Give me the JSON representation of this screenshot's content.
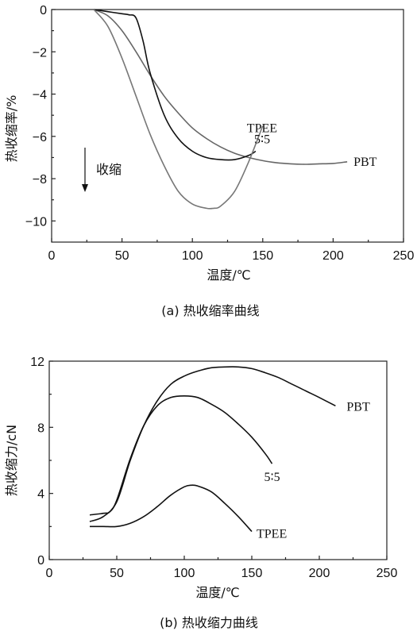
{
  "chart_data": [
    {
      "type": "line",
      "caption": "(a) 热收缩率曲线",
      "xlabel": "温度/℃",
      "ylabel": "热收缩率/%",
      "xlim": [
        0,
        250
      ],
      "ylim": [
        -11,
        0
      ],
      "xticks": [
        0,
        50,
        100,
        150,
        200,
        250
      ],
      "yticks": [
        0,
        -2,
        -4,
        -6,
        -8,
        -10
      ],
      "xtick_labels": [
        "0",
        "50",
        "100",
        "150",
        "200",
        "250"
      ],
      "ytick_labels": [
        "0",
        "−2",
        "−4",
        "−6",
        "−8",
        "−10"
      ],
      "annotation": "收缩",
      "grid": false,
      "series": [
        {
          "name": "PBT",
          "color": "#666666",
          "x": [
            30,
            40,
            50,
            60,
            70,
            80,
            90,
            100,
            110,
            120,
            130,
            140,
            150,
            160,
            170,
            180,
            190,
            200,
            210
          ],
          "y": [
            0,
            -0.3,
            -1.0,
            -2.0,
            -3.1,
            -4.1,
            -4.9,
            -5.6,
            -6.1,
            -6.5,
            -6.8,
            -7.0,
            -7.15,
            -7.25,
            -7.3,
            -7.32,
            -7.3,
            -7.28,
            -7.2
          ]
        },
        {
          "name": "5∶5",
          "color": "#111111",
          "x": [
            30,
            40,
            50,
            55,
            60,
            65,
            70,
            80,
            90,
            100,
            110,
            120,
            130,
            140,
            145
          ],
          "y": [
            0,
            -0.1,
            -0.2,
            -0.25,
            -0.4,
            -1.5,
            -3.0,
            -5.0,
            -6.1,
            -6.7,
            -7.0,
            -7.1,
            -7.1,
            -6.9,
            -6.7
          ]
        },
        {
          "name": "TPEE",
          "color": "#777777",
          "x": [
            30,
            40,
            50,
            60,
            70,
            80,
            90,
            100,
            110,
            115,
            120,
            130,
            140,
            150
          ],
          "y": [
            0,
            -0.8,
            -2.3,
            -4.1,
            -5.9,
            -7.4,
            -8.6,
            -9.2,
            -9.4,
            -9.4,
            -9.3,
            -8.6,
            -7.2,
            -5.5
          ]
        }
      ]
    },
    {
      "type": "line",
      "caption": "(b) 热收缩力曲线",
      "xlabel": "温度/℃",
      "ylabel": "热收缩力/cN",
      "xlim": [
        0,
        250
      ],
      "ylim": [
        0,
        12
      ],
      "xticks": [
        0,
        50,
        100,
        150,
        200,
        250
      ],
      "yticks": [
        0,
        4,
        8,
        12
      ],
      "xtick_labels": [
        "0",
        "50",
        "100",
        "150",
        "200",
        "250"
      ],
      "ytick_labels": [
        "0",
        "4",
        "8",
        "12"
      ],
      "grid": false,
      "series": [
        {
          "name": "PBT",
          "color": "#111111",
          "x": [
            30,
            40,
            50,
            60,
            70,
            80,
            90,
            100,
            110,
            120,
            130,
            140,
            150,
            160,
            170,
            180,
            190,
            200,
            212
          ],
          "y": [
            2.3,
            2.6,
            3.5,
            6.0,
            8.1,
            9.6,
            10.6,
            11.1,
            11.4,
            11.6,
            11.65,
            11.65,
            11.55,
            11.3,
            11.0,
            10.6,
            10.2,
            9.8,
            9.3
          ]
        },
        {
          "name": "5∶5",
          "color": "#111111",
          "x": [
            30,
            40,
            45,
            50,
            60,
            70,
            80,
            90,
            100,
            110,
            120,
            130,
            140,
            150,
            160,
            165
          ],
          "y": [
            2.7,
            2.8,
            2.9,
            3.6,
            6.1,
            8.1,
            9.3,
            9.8,
            9.9,
            9.8,
            9.4,
            8.9,
            8.2,
            7.4,
            6.4,
            5.8
          ]
        },
        {
          "name": "TPEE",
          "color": "#111111",
          "x": [
            30,
            40,
            50,
            60,
            70,
            80,
            90,
            100,
            105,
            110,
            120,
            130,
            140,
            150
          ],
          "y": [
            2.0,
            2.0,
            2.0,
            2.2,
            2.6,
            3.2,
            3.9,
            4.4,
            4.5,
            4.45,
            4.1,
            3.4,
            2.6,
            1.7
          ]
        }
      ]
    }
  ]
}
